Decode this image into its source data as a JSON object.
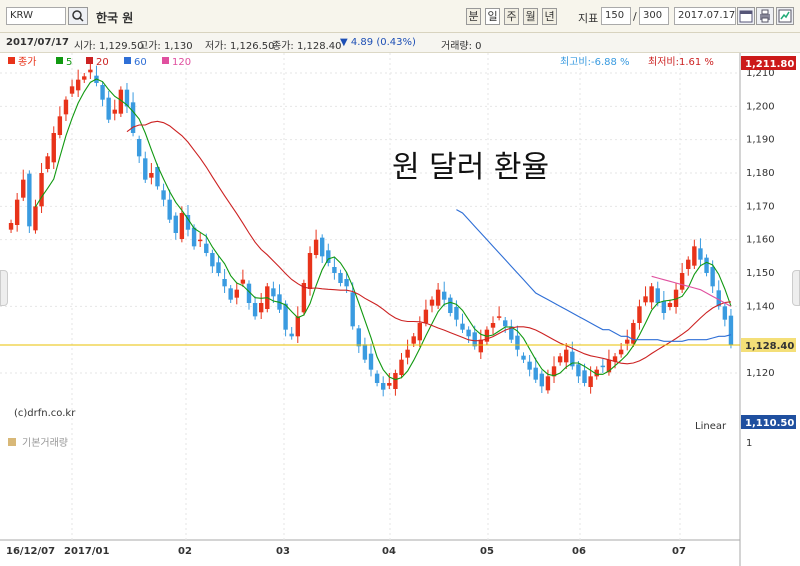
{
  "toolbar": {
    "code": "KRW",
    "name": "한국 원",
    "periods": [
      "분",
      "일",
      "주",
      "월",
      "년"
    ],
    "data_label": "지표",
    "count_current": "150",
    "count_separator": "/",
    "count_total": "300",
    "date": "2017.07.17"
  },
  "info": {
    "date": "2017/07/17",
    "open": "시가: 1,129.50",
    "high": "고가: 1,130",
    "low": "저가: 1,126.50",
    "close": "종가: 1,128.40",
    "change": "▼ 4.89 (0.43%)",
    "volume": "거래량: 0"
  },
  "colors": {
    "up": "#e8331a",
    "down": "#3a9be0",
    "ma5": "#119911",
    "ma20": "#cc2222",
    "ma60": "#2f6fd6",
    "ma120": "#e0509f",
    "current_line": "#e8c000",
    "max_badge": "#cc1a1a",
    "min_badge": "#1f4f9f"
  },
  "chart_data": {
    "type": "candlestick",
    "title": "원 달러 환율",
    "legend": [
      {
        "name": "종가",
        "color": "#e8331a"
      },
      {
        "name": "5",
        "color": "#119911"
      },
      {
        "name": "20",
        "color": "#cc2222"
      },
      {
        "name": "60",
        "color": "#2f6fd6"
      },
      {
        "name": "120",
        "color": "#e0509f"
      }
    ],
    "high_info": "최고비:-6.88 %",
    "low_info": "최저비:1.61 %",
    "y_ticks": [
      "1,210",
      "1,200",
      "1,190",
      "1,180",
      "1,170",
      "1,160",
      "1,150",
      "1,140",
      "1,120"
    ],
    "y_range": [
      1105,
      1216
    ],
    "max_value": "1,211.80",
    "current_value": "1,128.40",
    "min_value": "1,110.50",
    "scale": "Linear",
    "copyright": "(c)drfn.co.kr",
    "volume_label": "기본거래량",
    "volume_tick": "1",
    "x_labels": [
      "16/12/07",
      "2017/01",
      "02",
      "03",
      "04",
      "05",
      "06",
      "07"
    ],
    "closes": [
      1165,
      1172,
      1178,
      1164,
      1170,
      1180,
      1185,
      1192,
      1197,
      1202,
      1206,
      1208,
      1209,
      1211,
      1207,
      1202,
      1196,
      1199,
      1205,
      1200,
      1192,
      1185,
      1178,
      1180,
      1176,
      1172,
      1166,
      1162,
      1168,
      1163,
      1158,
      1160,
      1156,
      1152,
      1150,
      1146,
      1142,
      1145,
      1148,
      1141,
      1137,
      1141,
      1146,
      1143,
      1139,
      1133,
      1131,
      1137,
      1147,
      1156,
      1160,
      1155,
      1153,
      1150,
      1147,
      1146,
      1134,
      1128,
      1124,
      1121,
      1117,
      1115,
      1117,
      1120,
      1124,
      1127,
      1131,
      1135,
      1139,
      1142,
      1145,
      1142,
      1138,
      1136,
      1133,
      1131,
      1128,
      1130,
      1133,
      1135,
      1137,
      1134,
      1130,
      1127,
      1124,
      1121,
      1118,
      1116,
      1119,
      1122,
      1125,
      1127,
      1122,
      1119,
      1117,
      1119,
      1121,
      1122,
      1124,
      1125,
      1127,
      1130,
      1135,
      1140,
      1143,
      1146,
      1141,
      1138,
      1141,
      1145,
      1150,
      1154,
      1158,
      1154,
      1150,
      1146,
      1140,
      1136,
      1128.4
    ],
    "ma60_values": [
      1169,
      1168,
      1166,
      1164,
      1162,
      1160,
      1158,
      1156,
      1154,
      1152,
      1150,
      1148,
      1146,
      1144,
      1143,
      1142,
      1141,
      1140,
      1139,
      1138,
      1137,
      1136,
      1135,
      1134,
      1133,
      1133,
      1132,
      1131,
      1131,
      1130,
      1130,
      1130,
      1130,
      1130,
      1129.5,
      1129.5,
      1129.5,
      1129.5,
      1130,
      1130,
      1130,
      1130,
      1130.5,
      1131,
      1131,
      1131.5
    ],
    "ma120_values": [
      1149,
      1148.5,
      1148,
      1147.5,
      1147,
      1146.5,
      1146,
      1145.5,
      1145,
      1144,
      1143,
      1142,
      1141,
      1140
    ]
  }
}
